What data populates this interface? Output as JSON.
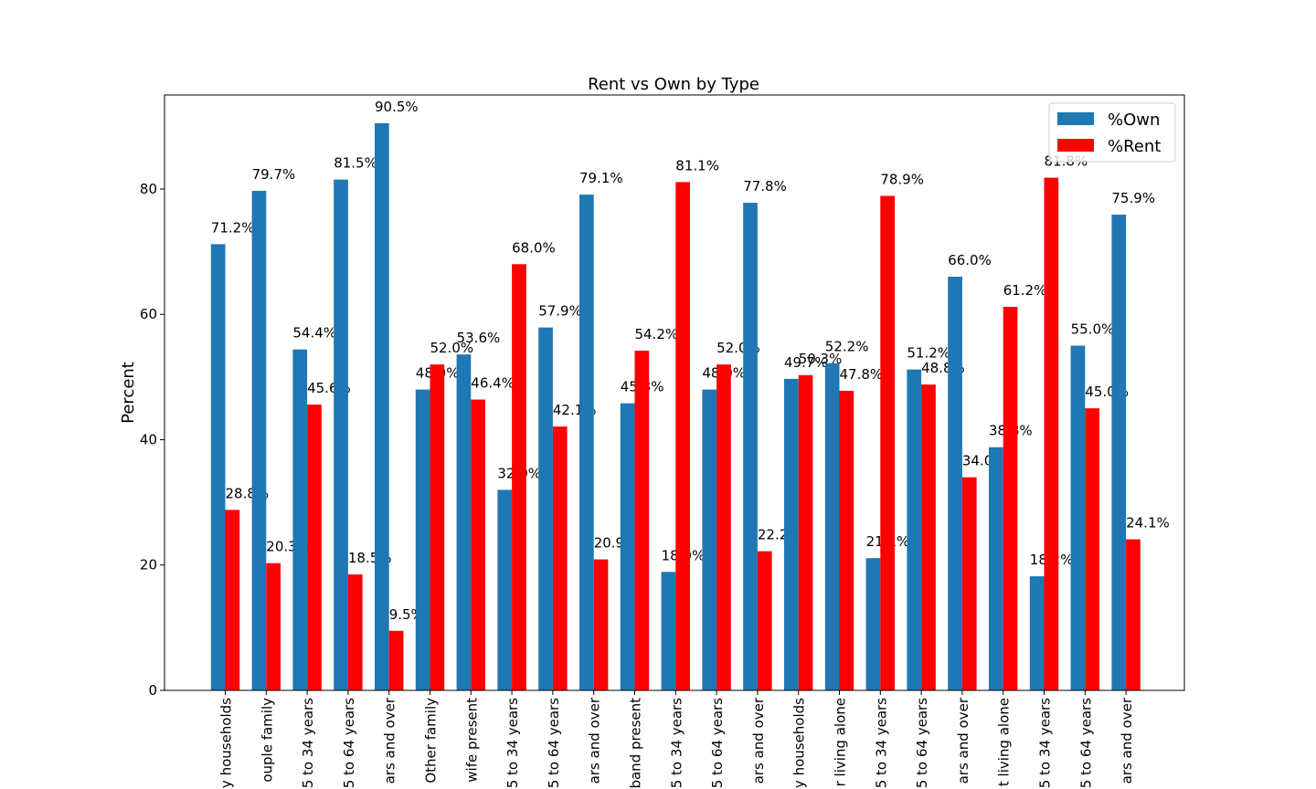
{
  "chart_data": {
    "type": "bar",
    "title": "Rent vs Own by Type",
    "y_label": "Percent",
    "categories": [
      "y households",
      "ouple family",
      "5 to 34 years",
      "5 to 64 years",
      "ars and over",
      "Other family",
      "wife present",
      "5 to 34 years",
      "5 to 64 years",
      "ars and over",
      "band present",
      "5 to 34 years",
      "5 to 64 years",
      "ars and over",
      "y households",
      "r living alone",
      "5 to 34 years",
      "5 to 64 years",
      "ars and over",
      "t living alone",
      "5 to 34 years",
      "5 to 64 years",
      "ars and over"
    ],
    "series": [
      {
        "name": "%Own",
        "color": "#1f77b4",
        "values": [
          71.2,
          79.7,
          54.4,
          81.5,
          90.5,
          48.0,
          53.6,
          32.0,
          57.9,
          79.1,
          45.8,
          18.9,
          48.0,
          77.8,
          49.7,
          52.2,
          21.1,
          51.2,
          66.0,
          38.8,
          18.2,
          55.0,
          75.9
        ],
        "value_labels": [
          "71.2%",
          "79.7%",
          "54.4%",
          "81.5%",
          "90.5%",
          "48.0%",
          "53.6%",
          "32.0%",
          "57.9%",
          "79.1%",
          "45.8%",
          "18.9%",
          "48.0%",
          "77.8%",
          "49.7%",
          "52.2%",
          "21.1%",
          "51.2%",
          "66.0%",
          "38.8%",
          "18.2%",
          "55.0%",
          "75.9%"
        ]
      },
      {
        "name": "%Rent",
        "color": "#ff0000",
        "values": [
          28.8,
          20.3,
          45.6,
          18.5,
          9.5,
          52.0,
          46.4,
          68.0,
          42.1,
          20.9,
          54.2,
          81.1,
          52.0,
          22.2,
          50.3,
          47.8,
          78.9,
          48.8,
          34.0,
          61.2,
          81.8,
          45.0,
          24.1
        ],
        "value_labels": [
          "28.8%",
          "20.3%",
          "45.6%",
          "18.5%",
          "9.5%",
          "52.0%",
          "46.4%",
          "68.0%",
          "42.1%",
          "20.9%",
          "54.2%",
          "81.1%",
          "52.0%",
          "22.2%",
          "50.3%",
          "47.8%",
          "78.9%",
          "48.8%",
          "34.0%",
          "61.2%",
          "81.8%",
          "45.0%",
          "24.1%"
        ]
      }
    ],
    "ylim": [
      0,
      95
    ],
    "yticks": [
      0,
      20,
      40,
      60,
      80
    ],
    "grid": false,
    "legend": "upper right"
  }
}
